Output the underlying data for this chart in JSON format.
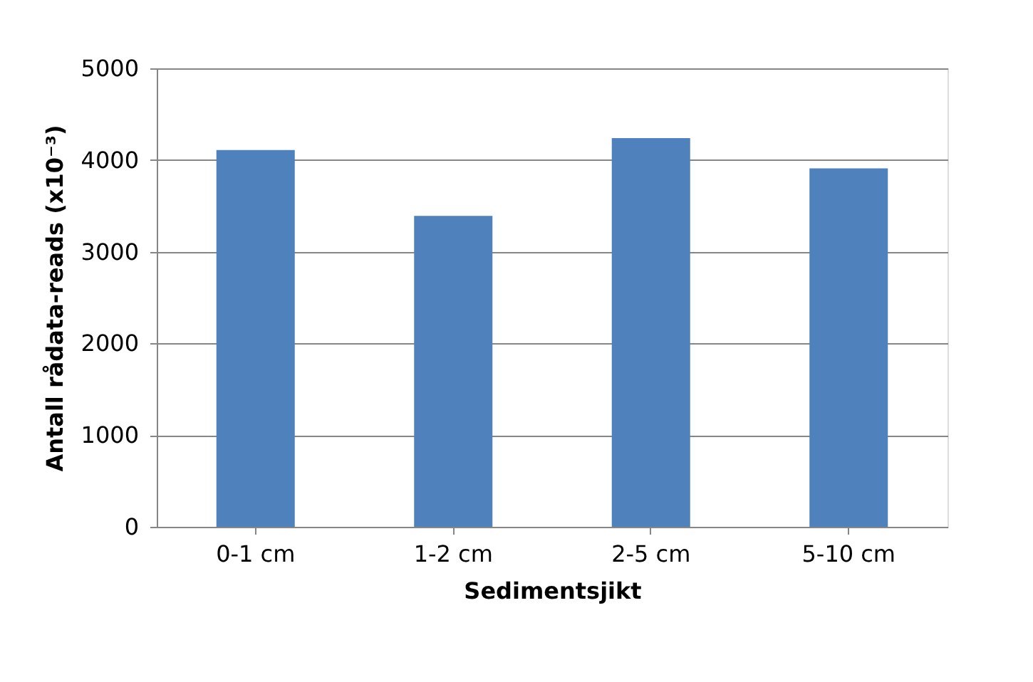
{
  "chart_data": {
    "type": "bar",
    "categories": [
      "0-1 cm",
      "1-2 cm",
      "2-5 cm",
      "5-10 cm"
    ],
    "values": [
      4110,
      3390,
      4240,
      3910
    ],
    "color": "#4f81bd",
    "xlabel": "Sedimentsjikt",
    "ylabel": "Antall rådata-reads (x10⁻³)",
    "ylim": [
      0,
      5000
    ],
    "yticks": [
      0,
      1000,
      2000,
      3000,
      4000,
      5000
    ],
    "grid": "y"
  }
}
